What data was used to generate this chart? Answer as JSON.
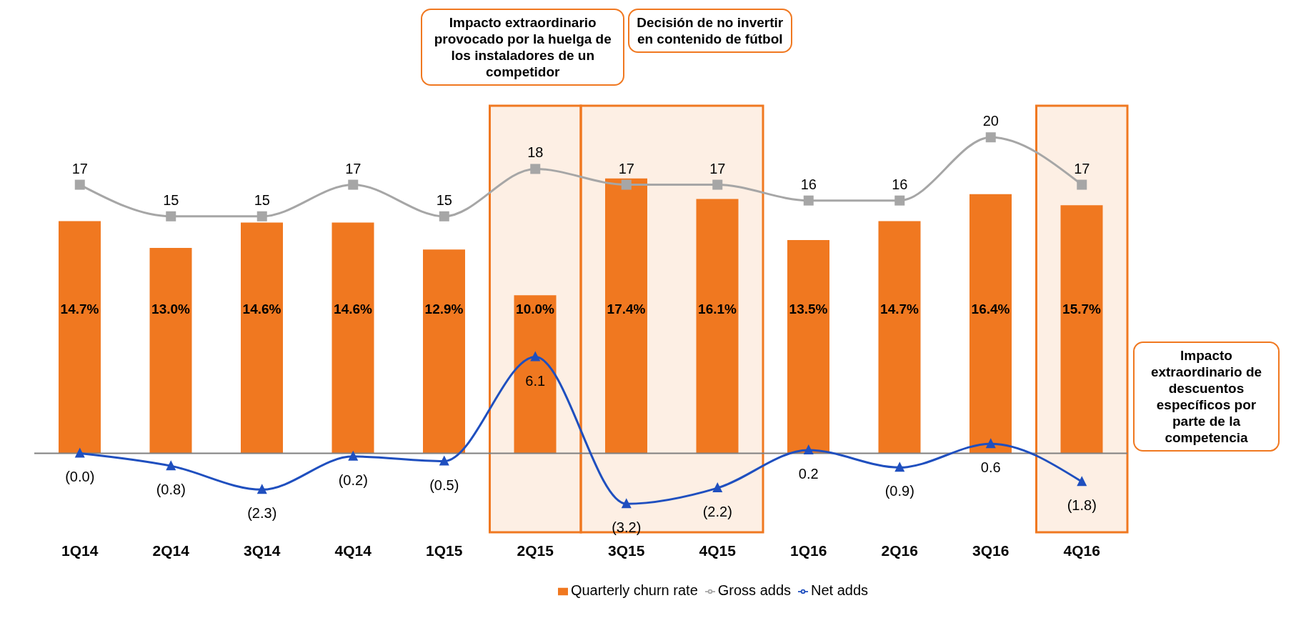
{
  "chart_data": {
    "type": "bar",
    "categories": [
      "1Q14",
      "2Q14",
      "3Q14",
      "4Q14",
      "1Q15",
      "2Q15",
      "3Q15",
      "4Q15",
      "1Q16",
      "2Q16",
      "3Q16",
      "4Q16"
    ],
    "series": [
      {
        "name": "Quarterly churn rate",
        "color": "#f07820",
        "values": [
          14.7,
          13.0,
          14.6,
          14.6,
          12.9,
          10.0,
          17.4,
          16.1,
          13.5,
          14.7,
          16.4,
          15.7
        ],
        "value_labels": [
          "14.7%",
          "13.0%",
          "14.6%",
          "14.6%",
          "12.9%",
          "10.0%",
          "17.4%",
          "16.1%",
          "13.5%",
          "14.7%",
          "16.4%",
          "15.7%"
        ]
      },
      {
        "name": "Gross adds",
        "type": "line",
        "color": "#a6a6a6",
        "marker": "square",
        "values": [
          17,
          15,
          15,
          17,
          15,
          18,
          17,
          17,
          16,
          16,
          20,
          17
        ],
        "value_labels": [
          "17",
          "15",
          "15",
          "17",
          "15",
          "18",
          "17",
          "17",
          "16",
          "16",
          "20",
          "17"
        ]
      },
      {
        "name": "Net adds",
        "type": "line",
        "color": "#1f4fbf",
        "marker": "triangle",
        "values": [
          0,
          -0.8,
          -2.3,
          -0.2,
          -0.5,
          6.1,
          -3.2,
          -2.2,
          0.2,
          -0.9,
          0.6,
          -1.8
        ],
        "value_labels": [
          "(0.0)",
          "(0.8)",
          "(2.3)",
          "(0.2)",
          "(0.5)",
          "6.1",
          "(3.2)",
          "(2.2)",
          "0.2",
          "(0.9)",
          "0.6",
          "(1.8)"
        ]
      }
    ],
    "ylim": [
      -5,
      22
    ],
    "tick_labels": "x",
    "grid": false,
    "legend": "bottom",
    "ref_lines": [
      {
        "axis": "y",
        "value": 0,
        "color": "#808080"
      }
    ],
    "bands": [
      {
        "axis": "x",
        "from": "2Q15",
        "to": "2Q15",
        "color": "#f07820"
      },
      {
        "axis": "x",
        "from": "3Q15",
        "to": "4Q15",
        "color": "#f07820"
      },
      {
        "axis": "x",
        "from": "4Q16",
        "to": "4Q16",
        "color": "#f07820"
      }
    ],
    "annotations": [
      "Impacto extraordinario provocado por la huelga de los instaladores de un competidor",
      "Decisión de no invertir en contenido de fútbol",
      "Impacto extraordinario de descuentos específicos por parte de la competencia"
    ]
  }
}
